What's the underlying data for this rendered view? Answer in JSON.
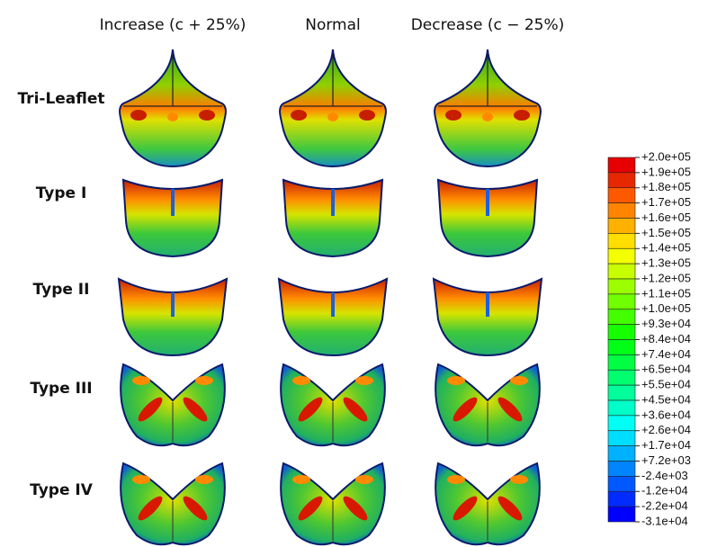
{
  "column_headers": [
    "Increase (c + 25%)",
    "Normal",
    "Decrease (c − 25%)"
  ],
  "row_labels": [
    "Tri-Leaflet",
    "Type I",
    "Type II",
    "Type III",
    "Type IV"
  ],
  "legend": {
    "labels": [
      "+2.0e+05",
      "+1.9e+05",
      "+1.8e+05",
      "+1.7e+05",
      "+1.6e+05",
      "+1.5e+05",
      "+1.4e+05",
      "+1.3e+05",
      "+1.2e+05",
      "+1.1e+05",
      "+1.0e+05",
      "+9.3e+04",
      "+8.4e+04",
      "+7.4e+04",
      "+6.5e+04",
      "+5.5e+04",
      "+4.5e+04",
      "+3.6e+04",
      "+2.6e+04",
      "+1.7e+04",
      "+7.2e+03",
      "-2.4e+03",
      "-1.2e+04",
      "-2.2e+04",
      "-3.1e+04"
    ]
  }
}
